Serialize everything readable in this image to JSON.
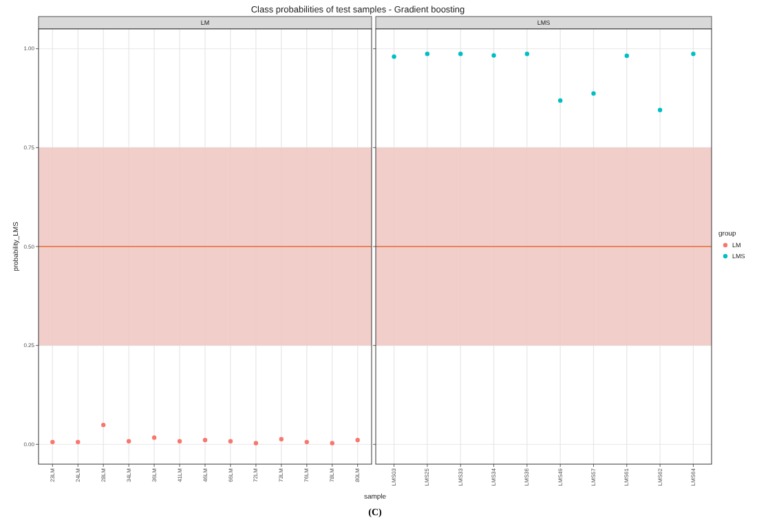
{
  "chart_data": [
    {
      "type": "scatter",
      "title": "Class probabilities of test samples - Gradient boosting",
      "subtitle": "LM",
      "xlabel": "sample",
      "ylabel": "probability_LMS",
      "annotations": [
        "(C)"
      ],
      "categories": [
        "23LM",
        "24LM",
        "28LM",
        "34LM",
        "36LM",
        "41LM",
        "46LM",
        "66LM",
        "72LM",
        "73LM",
        "76LM",
        "78LM",
        "80LM"
      ],
      "series": [
        {
          "color": "#f8766d",
          "values": [
            0.006,
            0.006,
            0.049,
            0.008,
            0.017,
            0.008,
            0.011,
            0.008,
            0.003,
            0.013,
            0.006,
            0.003,
            0.011
          ]
        }
      ],
      "ylim": [
        -0.05,
        1.05
      ],
      "yticks": [
        {
          "value": 0,
          "label": "0.00"
        },
        {
          "value": 0.25,
          "label": "0.25"
        },
        {
          "value": 0.5,
          "label": "0.50"
        },
        {
          "value": 0.75,
          "label": "0.75"
        },
        {
          "value": 1,
          "label": "1.00"
        }
      ],
      "bands": [
        {
          "axis": "y",
          "from": 0.25,
          "to": 0.75,
          "color": "#eec5c1"
        }
      ],
      "ref_lines": [
        {
          "axis": "y",
          "value": 0.5,
          "color": "#e8845c"
        }
      ],
      "grid": true,
      "marker": "circle"
    },
    {
      "type": "scatter",
      "subtitle": "LMS",
      "legend_title": "group",
      "categories": [
        "LMS03",
        "LMS25",
        "LMS33",
        "LMS34",
        "LMS36",
        "LMS49",
        "LMS57",
        "LMS61",
        "LMS62",
        "LMS64"
      ],
      "series": [
        {
          "name": "LM",
          "color": "#f8766d",
          "values": [
            null,
            null,
            null,
            null,
            null,
            null,
            null,
            null,
            null,
            null
          ]
        },
        {
          "name": "LMS",
          "color": "#00bfc4",
          "values": [
            0.98,
            0.987,
            0.987,
            0.983,
            0.987,
            0.869,
            0.887,
            0.982,
            0.845,
            0.987
          ]
        }
      ],
      "ylim": [
        -0.05,
        1.05
      ],
      "yticks": [
        0,
        0.25,
        0.5,
        0.75,
        1
      ],
      "bands": [
        {
          "axis": "y",
          "from": 0.25,
          "to": 0.75,
          "color": "#eec5c1"
        }
      ],
      "ref_lines": [
        {
          "axis": "y",
          "value": 0.5,
          "color": "#e8845c"
        }
      ],
      "grid": true,
      "marker": "circle",
      "legend": "right",
      "tick_labels": "x"
    }
  ]
}
